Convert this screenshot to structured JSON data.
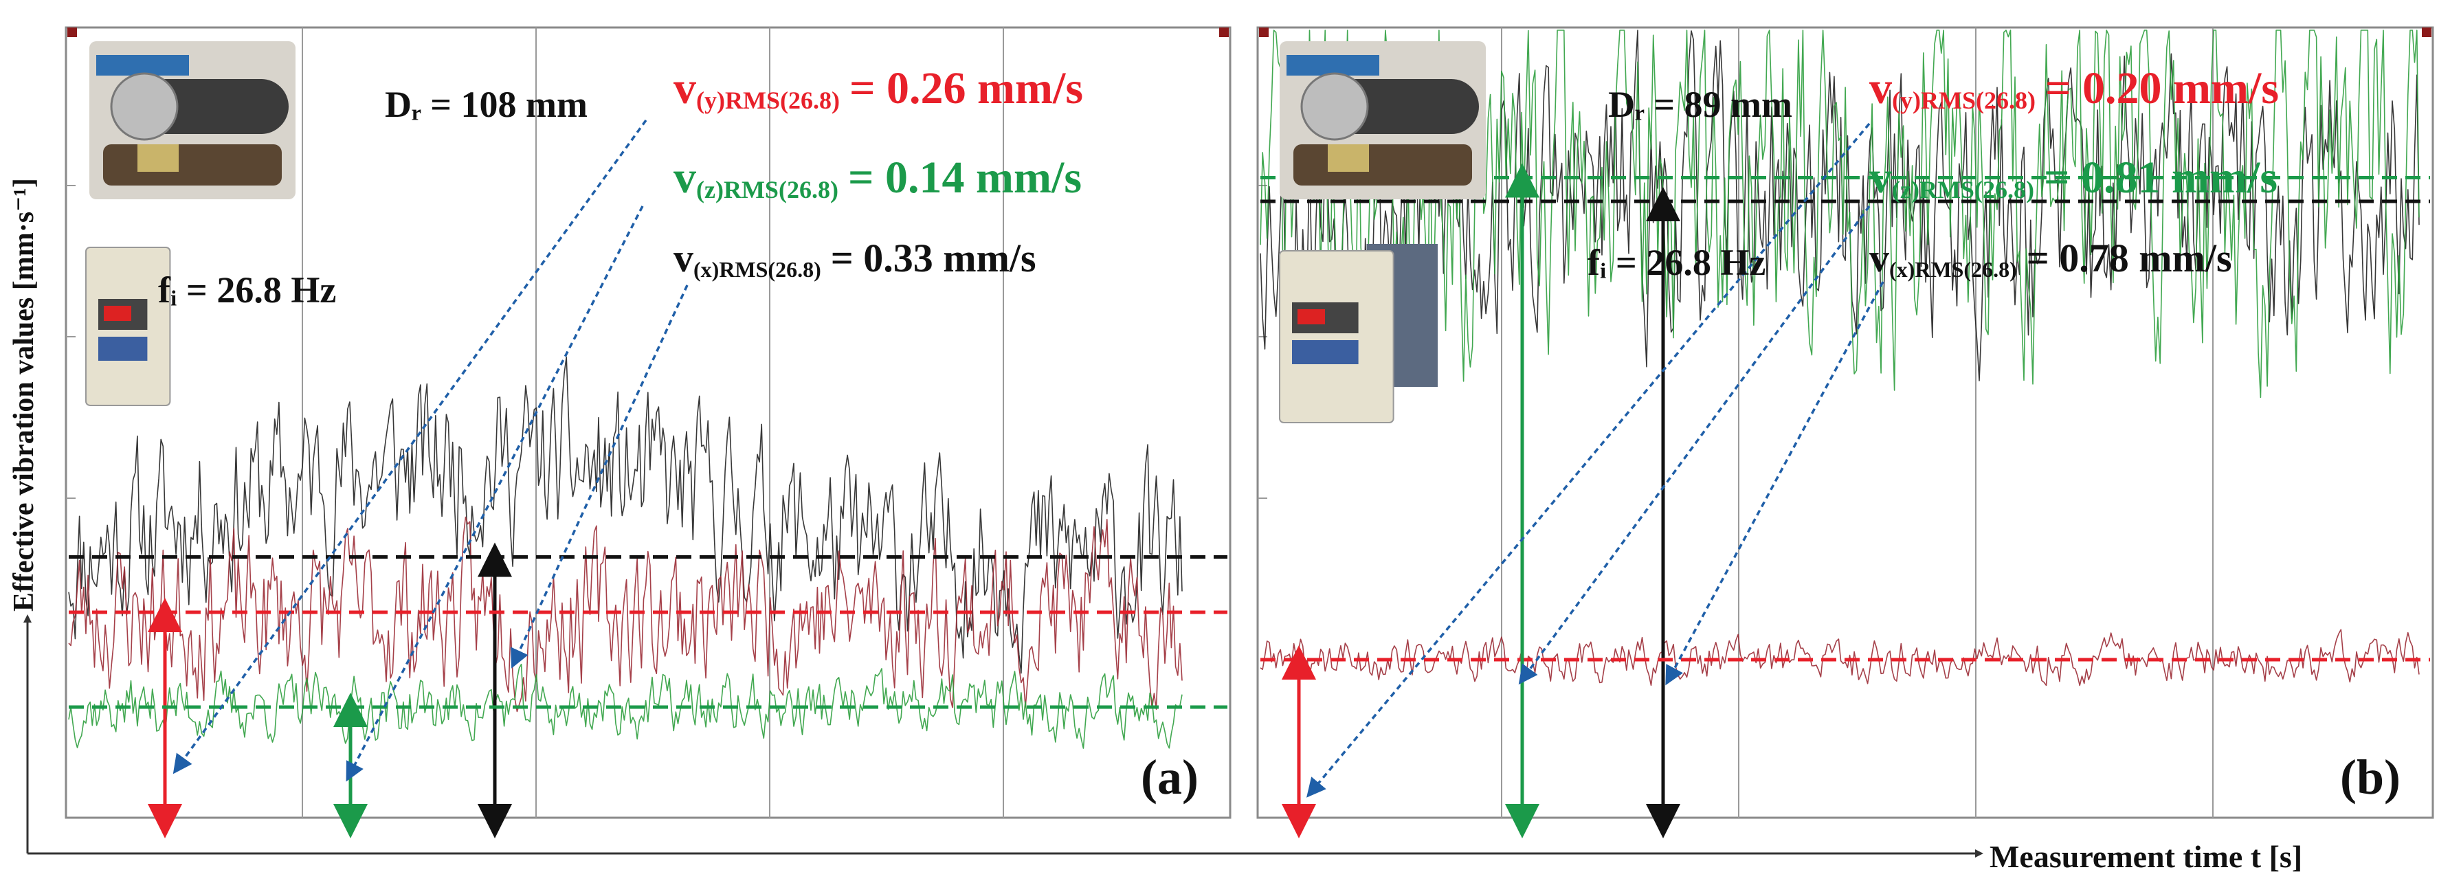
{
  "figure": {
    "y_axis_label": "Effective vibration values [mm·s⁻¹]",
    "x_axis_label": "Measurement time t [s]"
  },
  "colors": {
    "y_signal": "#9b2b35",
    "z_signal": "#2e9e3e",
    "x_signal": "#222222",
    "y_rms": "#e8202a",
    "z_rms": "#1b9a4a",
    "x_rms": "#111111",
    "arrow_dotted": "#1f5fa8",
    "frame": "#8a8a8a",
    "grid": "#9a9a9a"
  },
  "chart_data": [
    {
      "type": "line",
      "panel_label": "(a)",
      "diameter_label": "Dᵣ = 108 mm",
      "frequency_label": "fᵢ = 26.8 Hz",
      "rms_labels": {
        "y": {
          "symbol": "v",
          "subscript": "(y)RMS(26.8)",
          "value": "= 0.26 mm/s",
          "rms": 0.26
        },
        "z": {
          "symbol": "v",
          "subscript": "(z)RMS(26.8)",
          "value": "= 0.14 mm/s",
          "rms": 0.14
        },
        "x": {
          "symbol": "v",
          "subscript": "(x)RMS(26.8)",
          "value": "= 0.33 mm/s",
          "rms": 0.33
        }
      },
      "ylim": [
        0,
        1.0
      ],
      "grid": true,
      "series": [
        {
          "key": "x",
          "mean": 0.33,
          "amplitude": 0.19,
          "seed": 11
        },
        {
          "key": "y",
          "mean": 0.26,
          "amplitude": 0.17,
          "seed": 23
        },
        {
          "key": "z",
          "mean": 0.14,
          "amplitude": 0.07,
          "seed": 37
        }
      ]
    },
    {
      "type": "line",
      "panel_label": "(b)",
      "diameter_label": "Dᵣ = 89 mm",
      "frequency_label": "fᵢ = 26.8 Hz",
      "rms_labels": {
        "y": {
          "symbol": "v",
          "subscript": "(y)RMS(26.8)",
          "value": "= 0.20 mm/s",
          "rms": 0.2
        },
        "z": {
          "symbol": "v",
          "subscript": "(z)RMS(26.8)",
          "value": "= 0.81 mm/s",
          "rms": 0.81
        },
        "x": {
          "symbol": "v",
          "subscript": "(x)RMS(26.8)",
          "value": "= 0.78 mm/s",
          "rms": 0.78
        }
      },
      "ylim": [
        0,
        1.0
      ],
      "grid": true,
      "series": [
        {
          "key": "x",
          "mean": 0.78,
          "amplitude": 0.3,
          "seed": 53
        },
        {
          "key": "z",
          "mean": 0.81,
          "amplitude": 0.4,
          "seed": 71
        },
        {
          "key": "y",
          "mean": 0.2,
          "amplitude": 0.05,
          "seed": 89
        }
      ]
    }
  ]
}
